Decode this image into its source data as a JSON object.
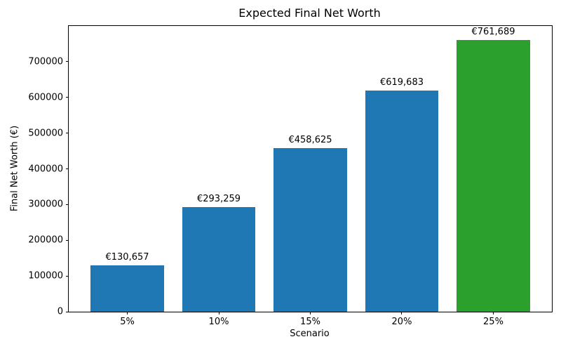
{
  "chart_data": {
    "type": "bar",
    "title": "Expected Final Net Worth",
    "xlabel": "Scenario",
    "ylabel": "Final Net Worth (€)",
    "categories": [
      "5%",
      "10%",
      "15%",
      "20%",
      "25%"
    ],
    "values": [
      130657,
      293259,
      458625,
      619683,
      761689
    ],
    "value_labels": [
      "€130,657",
      "€293,259",
      "€458,625",
      "€619,683",
      "€761,689"
    ],
    "bar_colors": [
      "#1f77b4",
      "#1f77b4",
      "#1f77b4",
      "#1f77b4",
      "#2ca02c"
    ],
    "yticks": [
      0,
      100000,
      200000,
      300000,
      400000,
      500000,
      600000,
      700000
    ],
    "ytick_labels": [
      "0",
      "100000",
      "200000",
      "300000",
      "400000",
      "500000",
      "600000",
      "700000"
    ],
    "ylim": [
      0,
      800000
    ],
    "grid": false,
    "legend": null,
    "background_color": "#ffffff",
    "text_color": "#000000"
  }
}
